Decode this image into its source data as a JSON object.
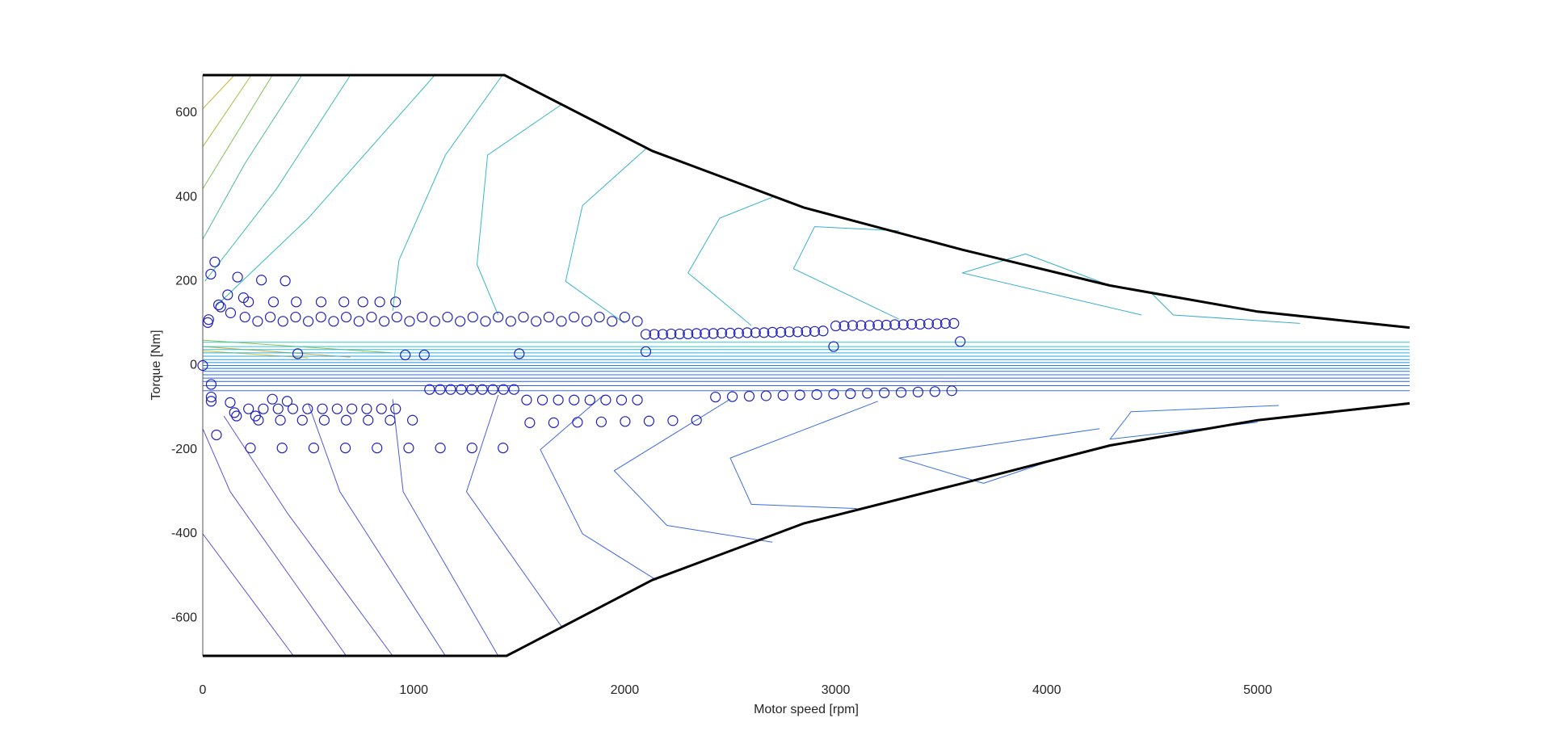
{
  "chart_data": {
    "type": "contour",
    "xlabel": "Motor speed [rpm]",
    "ylabel": "Torque [Nm]",
    "xlim": [
      0,
      5720
    ],
    "ylim": [
      -690,
      690
    ],
    "xticks": [
      0,
      1000,
      2000,
      3000,
      4000,
      5000
    ],
    "yticks": [
      -600,
      -400,
      -200,
      0,
      200,
      400,
      600
    ],
    "envelope": [
      {
        "color": "#000000",
        "x": [
          0,
          1430,
          2130,
          2850,
          3600,
          4300,
          5000,
          5720
        ],
        "y": [
          690,
          690,
          510,
          375,
          275,
          190,
          128,
          90
        ]
      },
      {
        "color": "#000000",
        "x": [
          0,
          1440,
          2130,
          2850,
          3600,
          4300,
          5000,
          5720
        ],
        "y": [
          -690,
          -690,
          -510,
          -375,
          -280,
          -190,
          -130,
          -90
        ]
      }
    ],
    "contours": [
      {
        "color": "#c8b432",
        "x": [
          0,
          150
        ],
        "y": [
          610,
          690
        ]
      },
      {
        "color": "#a8bf3a",
        "x": [
          0,
          230
        ],
        "y": [
          520,
          690
        ]
      },
      {
        "color": "#7cc45a",
        "x": [
          0,
          330
        ],
        "y": [
          420,
          690
        ]
      },
      {
        "color": "#4fc08a",
        "x": [
          0,
          200,
          470
        ],
        "y": [
          300,
          480,
          690
        ]
      },
      {
        "color": "#3bbfa8",
        "x": [
          10,
          350,
          700
        ],
        "y": [
          200,
          420,
          690
        ]
      },
      {
        "color": "#35bcbc",
        "x": [
          60,
          500,
          1100
        ],
        "y": [
          140,
          350,
          690
        ]
      },
      {
        "color": "#36b8c6",
        "x": [
          900,
          930,
          1150,
          1420
        ],
        "y": [
          130,
          250,
          500,
          690
        ]
      },
      {
        "color": "#36b8c6",
        "x": [
          1400,
          1300,
          1350,
          1700
        ],
        "y": [
          120,
          240,
          500,
          620
        ]
      },
      {
        "color": "#38b4ca",
        "x": [
          2000,
          1720,
          1800,
          2100
        ],
        "y": [
          100,
          200,
          380,
          515
        ]
      },
      {
        "color": "#38b4ca",
        "x": [
          2600,
          2300,
          2450,
          2700
        ],
        "y": [
          95,
          220,
          350,
          400
        ]
      },
      {
        "color": "#3ab0cc",
        "x": [
          3300,
          2800,
          2900,
          3300
        ],
        "y": [
          110,
          230,
          330,
          320
        ]
      },
      {
        "color": "#3ab0cc",
        "x": [
          4450,
          3600,
          3900,
          4300
        ],
        "y": [
          120,
          220,
          265,
          190
        ]
      },
      {
        "color": "#3aaccc",
        "x": [
          5200,
          4600,
          4500,
          5000
        ],
        "y": [
          100,
          120,
          170,
          128
        ]
      },
      {
        "color": "#d4a840",
        "x": [
          0,
          700
        ],
        "y": [
          45,
          20
        ]
      },
      {
        "color": "#e0c030",
        "x": [
          0,
          500
        ],
        "y": [
          35,
          18
        ]
      },
      {
        "color": "#90c050",
        "x": [
          0,
          900
        ],
        "y": [
          60,
          30
        ]
      },
      {
        "color": "#30c8c8",
        "x": [
          0,
          5720
        ],
        "y": [
          55,
          55
        ]
      },
      {
        "color": "#30c4cc",
        "x": [
          0,
          5720
        ],
        "y": [
          45,
          45
        ]
      },
      {
        "color": "#2cbcd0",
        "x": [
          0,
          5720
        ],
        "y": [
          38,
          38
        ]
      },
      {
        "color": "#28b0d6",
        "x": [
          0,
          5720
        ],
        "y": [
          30,
          30
        ]
      },
      {
        "color": "#24a4dc",
        "x": [
          0,
          5720
        ],
        "y": [
          22,
          22
        ]
      },
      {
        "color": "#2098e2",
        "x": [
          0,
          5720
        ],
        "y": [
          14,
          14
        ]
      },
      {
        "color": "#1e8ce6",
        "x": [
          0,
          5720
        ],
        "y": [
          7,
          7
        ]
      },
      {
        "color": "#1c80ea",
        "x": [
          0,
          5720
        ],
        "y": [
          0,
          0
        ]
      },
      {
        "color": "#1c78ee",
        "x": [
          0,
          5720
        ],
        "y": [
          -7,
          -7
        ]
      },
      {
        "color": "#1e70f0",
        "x": [
          0,
          5720
        ],
        "y": [
          -14,
          -14
        ]
      },
      {
        "color": "#2068f0",
        "x": [
          0,
          5720
        ],
        "y": [
          -22,
          -22
        ]
      },
      {
        "color": "#2460ee",
        "x": [
          0,
          5720
        ],
        "y": [
          -30,
          -30
        ]
      },
      {
        "color": "#2a5aea",
        "x": [
          0,
          5720
        ],
        "y": [
          -38,
          -38
        ]
      },
      {
        "color": "#3060e6",
        "x": [
          0,
          5720
        ],
        "y": [
          -48,
          -48
        ]
      },
      {
        "color": "#3a68e2",
        "x": [
          0,
          5720
        ],
        "y": [
          -60,
          -60
        ]
      },
      {
        "color": "#5a50d8",
        "x": [
          0,
          430
        ],
        "y": [
          -400,
          -690
        ]
      },
      {
        "color": "#5850da",
        "x": [
          0,
          130,
          680
        ],
        "y": [
          -150,
          -300,
          -690
        ]
      },
      {
        "color": "#5454dc",
        "x": [
          100,
          400,
          900
        ],
        "y": [
          -120,
          -350,
          -690
        ]
      },
      {
        "color": "#5058de",
        "x": [
          500,
          650,
          1150
        ],
        "y": [
          -90,
          -300,
          -690
        ]
      },
      {
        "color": "#4c5ce0",
        "x": [
          900,
          950,
          1400
        ],
        "y": [
          -80,
          -300,
          -690
        ]
      },
      {
        "color": "#4860e2",
        "x": [
          1400,
          1250,
          1700
        ],
        "y": [
          -70,
          -300,
          -620
        ]
      },
      {
        "color": "#4466e2",
        "x": [
          1900,
          1600,
          1800,
          2150
        ],
        "y": [
          -70,
          -200,
          -400,
          -510
        ]
      },
      {
        "color": "#4068e2",
        "x": [
          2500,
          1950,
          2200,
          2700
        ],
        "y": [
          -80,
          -250,
          -380,
          -420
        ]
      },
      {
        "color": "#3c6ce2",
        "x": [
          3200,
          2500,
          2600,
          3100
        ],
        "y": [
          -85,
          -220,
          -330,
          -340
        ]
      },
      {
        "color": "#3a70e2",
        "x": [
          4250,
          3300,
          3700,
          4000
        ],
        "y": [
          -150,
          -220,
          -280,
          -230
        ]
      },
      {
        "color": "#3874e2",
        "x": [
          5100,
          4400,
          4300,
          5000
        ],
        "y": [
          -95,
          -110,
          -175,
          -135
        ]
      }
    ],
    "points": {
      "color": "#2020c0",
      "x": [
        57,
        38,
        165,
        278,
        391,
        217,
        335,
        443,
        561,
        669,
        759,
        839,
        914,
        118,
        193,
        85,
        75,
        132,
        28,
        24,
        200,
        260,
        320,
        380,
        440,
        500,
        560,
        620,
        680,
        740,
        800,
        860,
        920,
        980,
        1040,
        1100,
        1160,
        1220,
        1280,
        1340,
        1400,
        1460,
        1520,
        1580,
        1640,
        1700,
        1760,
        1820,
        1880,
        1940,
        2000,
        2060,
        2100,
        2140,
        2180,
        2220,
        2260,
        2300,
        2340,
        2380,
        2420,
        2460,
        2500,
        2540,
        2580,
        2620,
        2660,
        2700,
        2740,
        2780,
        2820,
        2860,
        2900,
        2940,
        3000,
        3040,
        3080,
        3120,
        3160,
        3200,
        3240,
        3280,
        3320,
        3360,
        3400,
        3440,
        3480,
        3520,
        3560,
        450,
        960,
        1050,
        1500,
        2100,
        2990,
        3590,
        0,
        1075,
        1125,
        1175,
        1225,
        1275,
        1325,
        1375,
        1425,
        1475,
        1535,
        1610,
        1685,
        1760,
        1835,
        1910,
        1985,
        2060,
        1550,
        1663,
        1776,
        1889,
        2002,
        2115,
        2228,
        2340,
        2430,
        2510,
        2590,
        2670,
        2750,
        2830,
        2910,
        2990,
        3070,
        3150,
        3230,
        3310,
        3390,
        3470,
        3550,
        217,
        287,
        357,
        427,
        497,
        567,
        637,
        707,
        777,
        847,
        914,
        264,
        368,
        472,
        576,
        680,
        784,
        888,
        994,
        226,
        376,
        526,
        676,
        826,
        976,
        1126,
        1276,
        1423,
        40,
        40,
        40,
        65,
        130,
        150,
        160,
        250,
        330,
        400
      ],
      "y": [
        246,
        217,
        210,
        203,
        201,
        151,
        151,
        151,
        151,
        151,
        151,
        151,
        151,
        168,
        161,
        139,
        144,
        125,
        109,
        102,
        115,
        105,
        115,
        105,
        115,
        105,
        115,
        105,
        115,
        105,
        115,
        105,
        115,
        105,
        115,
        105,
        115,
        105,
        115,
        105,
        115,
        105,
        115,
        105,
        115,
        105,
        115,
        105,
        115,
        105,
        115,
        105,
        74,
        74,
        74,
        75,
        75,
        75,
        76,
        76,
        76,
        77,
        77,
        77,
        78,
        78,
        78,
        79,
        79,
        80,
        80,
        81,
        81,
        82,
        94,
        94,
        95,
        95,
        95,
        96,
        96,
        97,
        97,
        98,
        98,
        99,
        99,
        100,
        100,
        28,
        25,
        25,
        28,
        33,
        45,
        57,
        0,
        -57,
        -57,
        -57,
        -57,
        -57,
        -57,
        -57,
        -57,
        -57,
        -82,
        -82,
        -82,
        -82,
        -82,
        -82,
        -82,
        -82,
        -136,
        -136,
        -135,
        -134,
        -133,
        -132,
        -131,
        -130,
        -75,
        -74,
        -73,
        -72,
        -71,
        -70,
        -69,
        -68,
        -67,
        -66,
        -65,
        -64,
        -63,
        -62,
        -60,
        -103,
        -103,
        -103,
        -103,
        -103,
        -103,
        -103,
        -103,
        -103,
        -103,
        -103,
        -130,
        -130,
        -130,
        -130,
        -130,
        -130,
        -130,
        -130,
        -196,
        -196,
        -196,
        -196,
        -196,
        -196,
        -196,
        -196,
        -196,
        -45,
        -75,
        -85,
        -165,
        -88,
        -112,
        -120,
        -120,
        -80,
        -85
      ]
    }
  }
}
